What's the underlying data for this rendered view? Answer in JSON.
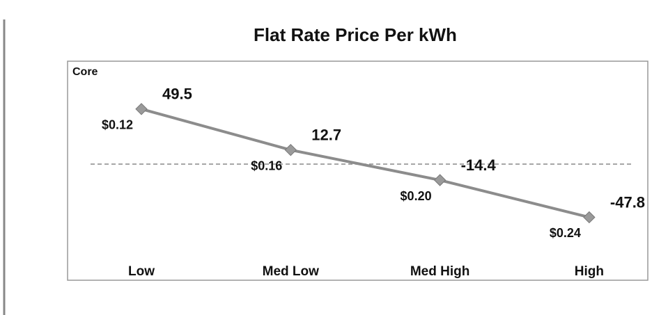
{
  "chart_data": {
    "type": "line",
    "title": "Flat Rate Price Per kWh",
    "subtitle": "Core",
    "categories": [
      "Low",
      "Med Low",
      "Med High",
      "High"
    ],
    "series": [
      {
        "name": "Core",
        "color": "#8c8c8c",
        "values": [
          49.5,
          12.7,
          -14.4,
          -47.8
        ]
      }
    ],
    "price_labels": [
      "$0.12",
      "$0.16",
      "$0.20",
      "$0.24"
    ],
    "ylim": [
      -60,
      60
    ]
  }
}
